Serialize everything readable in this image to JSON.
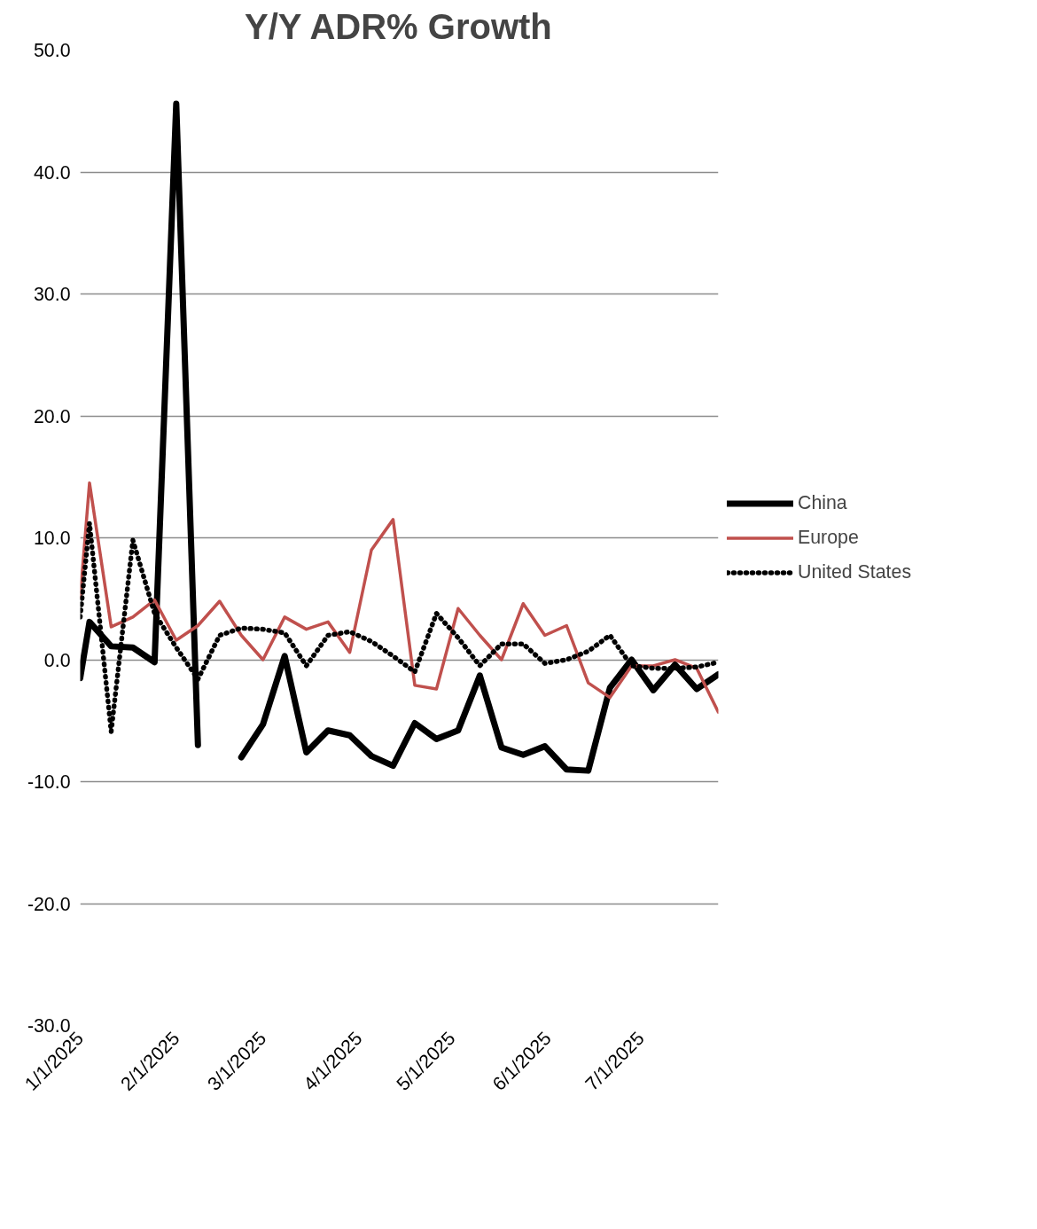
{
  "chart_data": {
    "type": "line",
    "title": "Y/Y ADR% Growth",
    "x": [
      "2025-01-01",
      "2025-01-04",
      "2025-01-11",
      "2025-01-18",
      "2025-01-25",
      "2025-02-01",
      "2025-02-08",
      "2025-02-15",
      "2025-02-22",
      "2025-03-01",
      "2025-03-08",
      "2025-03-15",
      "2025-03-22",
      "2025-03-29",
      "2025-04-05",
      "2025-04-12",
      "2025-04-19",
      "2025-04-26",
      "2025-05-03",
      "2025-05-10",
      "2025-05-17",
      "2025-05-24",
      "2025-05-31",
      "2025-06-07",
      "2025-06-14",
      "2025-06-21",
      "2025-06-28",
      "2025-07-05",
      "2025-07-12",
      "2025-07-19",
      "2025-07-26"
    ],
    "series": [
      {
        "name": "China",
        "color": "#000000",
        "line_style": "solid",
        "values": [
          -1.5,
          3.1,
          1.1,
          1.0,
          -0.2,
          45.6,
          -7.0,
          null,
          -8.0,
          -5.3,
          0.3,
          -7.6,
          -5.8,
          -6.2,
          -7.9,
          -8.7,
          -5.2,
          -6.5,
          -5.8,
          -1.3,
          -7.2,
          -7.8,
          -7.1,
          -9.0,
          -9.1,
          -2.3,
          0.0,
          -2.5,
          -0.4,
          -2.4,
          -1.2
        ]
      },
      {
        "name": "Europe",
        "color": "#c0504d",
        "line_style": "solid",
        "values": [
          5.1,
          14.5,
          2.7,
          3.5,
          4.9,
          1.6,
          2.8,
          4.8,
          2.0,
          0.0,
          3.5,
          2.5,
          3.1,
          0.6,
          9.0,
          11.5,
          -2.1,
          -2.4,
          4.2,
          2.0,
          0.0,
          4.6,
          2.0,
          2.8,
          -1.9,
          -3.1,
          -0.5,
          -0.5,
          0.0,
          -0.7,
          -4.3
        ]
      },
      {
        "name": "United States",
        "color": "#000000",
        "line_style": "dotted",
        "values": [
          3.5,
          11.2,
          -5.9,
          9.8,
          3.8,
          1.0,
          -1.6,
          2.0,
          2.6,
          2.5,
          2.2,
          -0.5,
          2.0,
          2.3,
          1.5,
          0.3,
          -1.0,
          3.8,
          1.8,
          -0.5,
          1.3,
          1.3,
          -0.3,
          0.0,
          0.7,
          2.0,
          -0.5,
          -0.7,
          -0.7,
          -0.6,
          -0.2
        ]
      }
    ],
    "xlim": [
      "2025-01-01",
      "2025-07-26"
    ],
    "xticks": [
      {
        "value": "2025-01-01",
        "label": "1/1/2025"
      },
      {
        "value": "2025-02-01",
        "label": "2/1/2025"
      },
      {
        "value": "2025-03-01",
        "label": "3/1/2025"
      },
      {
        "value": "2025-04-01",
        "label": "4/1/2025"
      },
      {
        "value": "2025-05-01",
        "label": "5/1/2025"
      },
      {
        "value": "2025-06-01",
        "label": "6/1/2025"
      },
      {
        "value": "2025-07-01",
        "label": "7/1/2025"
      }
    ],
    "ylim": [
      -30,
      50
    ],
    "yticks": [
      {
        "value": -30,
        "label": "-30.0"
      },
      {
        "value": -20,
        "label": "-20.0"
      },
      {
        "value": -10,
        "label": "-10.0"
      },
      {
        "value": 0,
        "label": "0.0"
      },
      {
        "value": 10,
        "label": "10.0"
      },
      {
        "value": 20,
        "label": "20.0"
      },
      {
        "value": 30,
        "label": "30.0"
      },
      {
        "value": 40,
        "label": "40.0"
      },
      {
        "value": 50,
        "label": "50.0"
      }
    ],
    "grid": "y",
    "legend": "right"
  }
}
